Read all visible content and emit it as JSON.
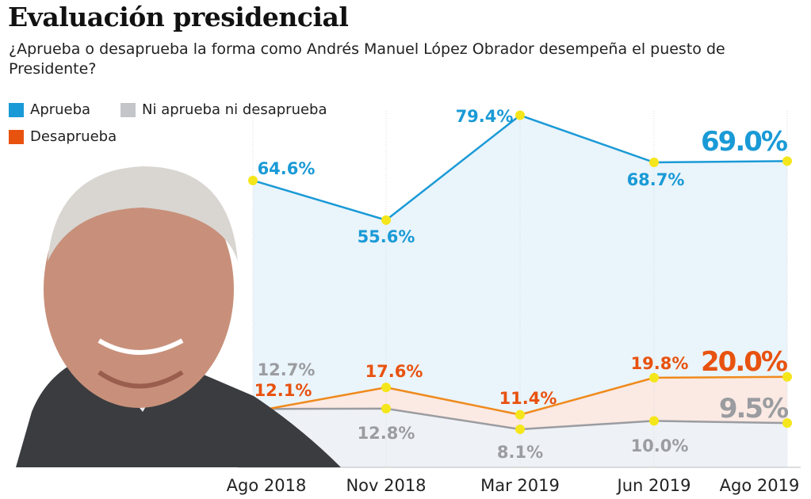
{
  "title": "Evaluación presidencial",
  "subtitle": "¿Aprueba o desaprueba la forma como Andrés Manuel López Obrador desempeña el puesto de Presidente?",
  "colors": {
    "aprueba": "#1a9ad6",
    "desaprueba": "#e8520f",
    "ni": "#a7a9ad",
    "points": "#f5e61b",
    "aprueba_fill": "#eaf4fb",
    "desaprueba_fill": "#fbe9e3",
    "ni_fill": "#eef2f6"
  },
  "chart_data": {
    "type": "line",
    "title": "Evaluación presidencial",
    "categories": [
      "Ago 2018",
      "Nov 2018",
      "Mar 2019",
      "Jun 2019",
      "Ago 2019"
    ],
    "series": [
      {
        "name": "Aprueba",
        "values": [
          64.6,
          55.6,
          79.4,
          68.7,
          69.0
        ],
        "labels": [
          "64.6%",
          "55.6%",
          "79.4%",
          "68.7%",
          "69.0%"
        ]
      },
      {
        "name": "Ni aprueba ni desaprueba",
        "values": [
          12.7,
          12.8,
          8.1,
          10.0,
          9.5
        ],
        "labels": [
          "12.7%",
          "12.8%",
          "8.1%",
          "10.0%",
          "9.5%"
        ]
      },
      {
        "name": "Desaprueba",
        "values": [
          12.1,
          17.6,
          11.4,
          19.8,
          20.0
        ],
        "labels": [
          "12.1%",
          "17.6%",
          "11.4%",
          "19.8%",
          "20.0%"
        ]
      }
    ],
    "ylim": [
      0,
      85
    ],
    "grid": "vertical",
    "legend": "top-left"
  },
  "photo_alt": "Andrés Manuel López Obrador"
}
